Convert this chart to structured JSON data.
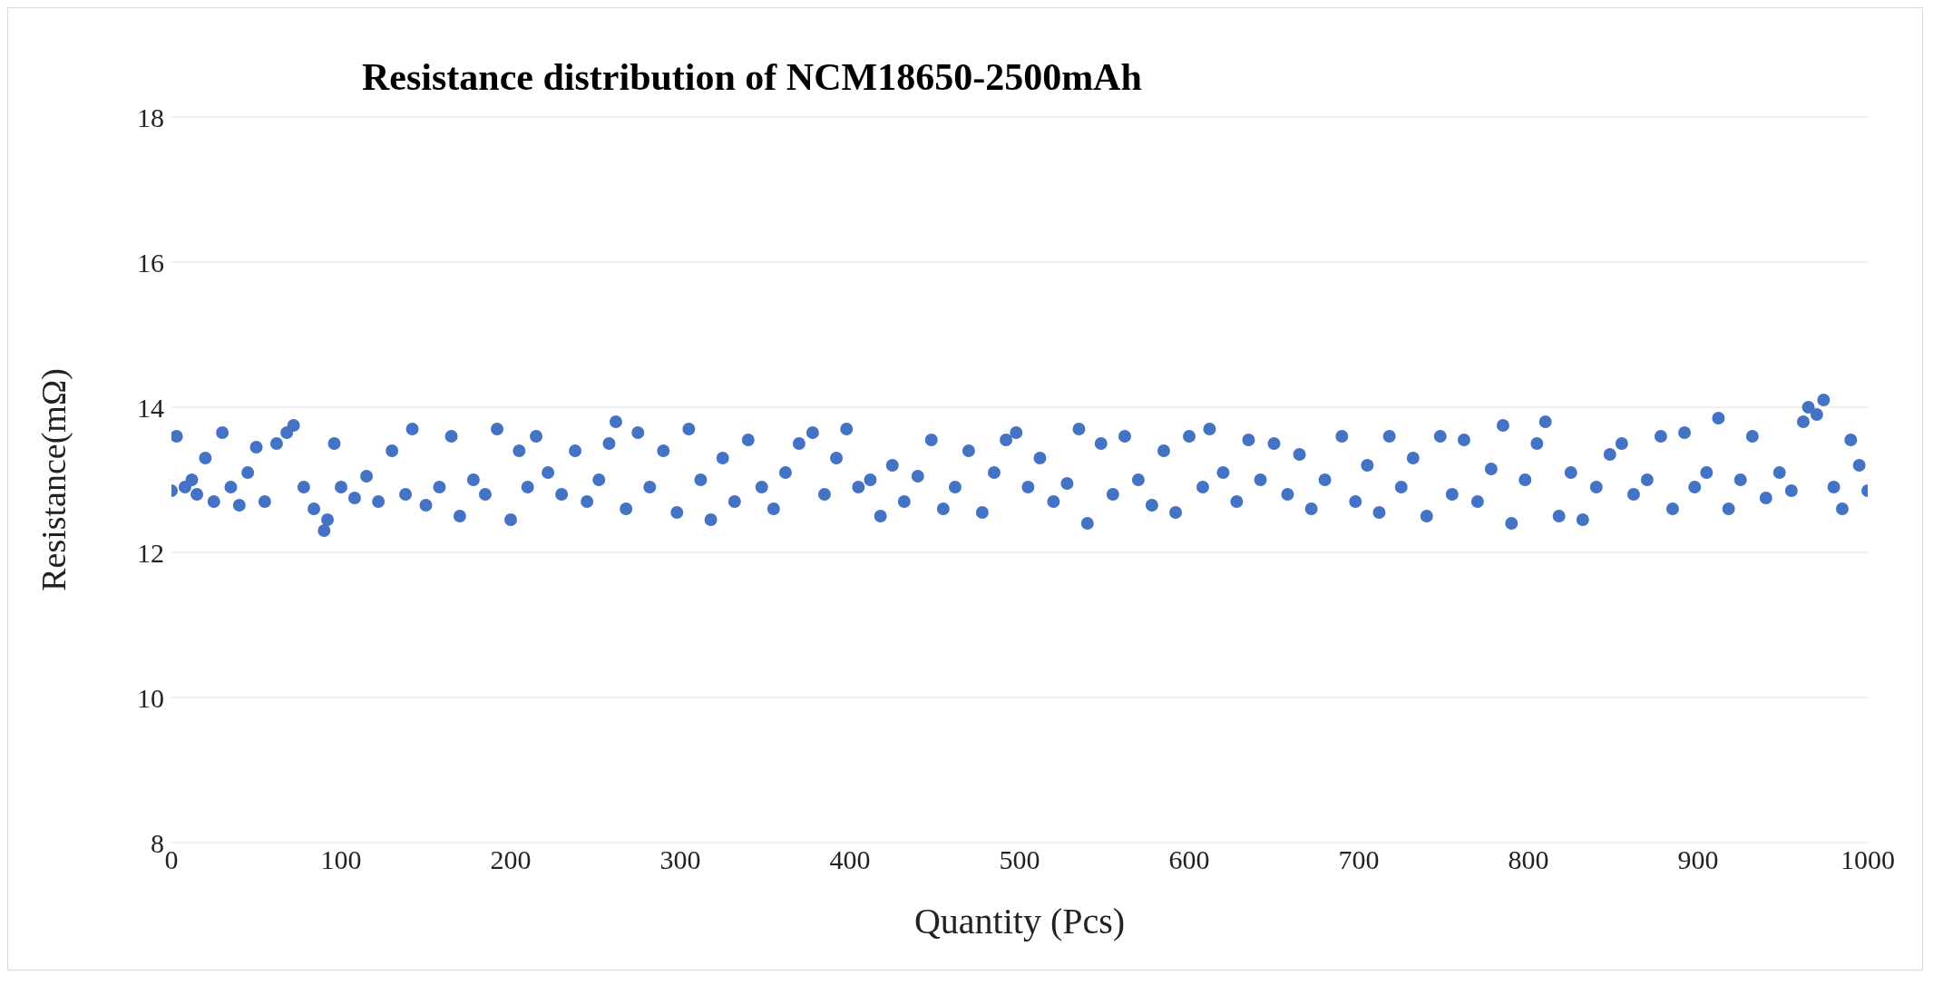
{
  "chart_data": {
    "type": "scatter",
    "title": "Resistance distribution  of NCM18650-2500mAh",
    "xlabel": "Quantity  (Pcs)",
    "ylabel": "Resistance(mΩ)",
    "xlim": [
      0,
      1000
    ],
    "xticks": [
      0,
      100,
      200,
      300,
      400,
      500,
      600,
      700,
      800,
      900,
      1000
    ],
    "ylim": [
      8,
      18
    ],
    "yticks": [
      8,
      10,
      12,
      14,
      16,
      18
    ],
    "grid": "y",
    "marker": "circle",
    "series": [
      {
        "color": "#4472c4",
        "x": [
          0,
          3,
          8,
          12,
          15,
          20,
          25,
          30,
          35,
          40,
          45,
          50,
          55,
          62,
          68,
          72,
          78,
          84,
          90,
          92,
          96,
          100,
          108,
          115,
          122,
          130,
          138,
          142,
          150,
          158,
          165,
          170,
          178,
          185,
          192,
          200,
          205,
          210,
          215,
          222,
          230,
          238,
          245,
          252,
          258,
          262,
          268,
          275,
          282,
          290,
          298,
          305,
          312,
          318,
          325,
          332,
          340,
          348,
          355,
          362,
          370,
          378,
          385,
          392,
          398,
          405,
          412,
          418,
          425,
          432,
          440,
          448,
          455,
          462,
          470,
          478,
          485,
          492,
          498,
          505,
          512,
          520,
          528,
          535,
          540,
          548,
          555,
          562,
          570,
          578,
          585,
          592,
          600,
          608,
          612,
          620,
          628,
          635,
          642,
          650,
          658,
          665,
          672,
          680,
          690,
          698,
          705,
          712,
          718,
          725,
          732,
          740,
          748,
          755,
          762,
          770,
          778,
          785,
          790,
          798,
          805,
          810,
          818,
          825,
          832,
          840,
          848,
          855,
          862,
          870,
          878,
          885,
          892,
          898,
          905,
          912,
          918,
          925,
          932,
          940,
          948,
          955,
          962,
          965,
          970,
          974,
          980,
          985,
          990,
          995,
          1000
        ],
        "values": [
          12.85,
          13.6,
          12.9,
          13.0,
          12.8,
          13.3,
          12.7,
          13.65,
          12.9,
          12.65,
          13.1,
          13.45,
          12.7,
          13.5,
          13.65,
          13.75,
          12.9,
          12.6,
          12.3,
          12.45,
          13.5,
          12.9,
          12.75,
          13.05,
          12.7,
          13.4,
          12.8,
          13.7,
          12.65,
          12.9,
          13.6,
          12.5,
          13.0,
          12.8,
          13.7,
          12.45,
          13.4,
          12.9,
          13.6,
          13.1,
          12.8,
          13.4,
          12.7,
          13.0,
          13.5,
          13.8,
          12.6,
          13.65,
          12.9,
          13.4,
          12.55,
          13.7,
          13.0,
          12.45,
          13.3,
          12.7,
          13.55,
          12.9,
          12.6,
          13.1,
          13.5,
          13.65,
          12.8,
          13.3,
          13.7,
          12.9,
          13.0,
          12.5,
          13.2,
          12.7,
          13.05,
          13.55,
          12.6,
          12.9,
          13.4,
          12.55,
          13.1,
          13.55,
          13.65,
          12.9,
          13.3,
          12.7,
          12.95,
          13.7,
          12.4,
          13.5,
          12.8,
          13.6,
          13.0,
          12.65,
          13.4,
          12.55,
          13.6,
          12.9,
          13.7,
          13.1,
          12.7,
          13.55,
          13.0,
          13.5,
          12.8,
          13.35,
          12.6,
          13.0,
          13.6,
          12.7,
          13.2,
          12.55,
          13.6,
          12.9,
          13.3,
          12.5,
          13.6,
          12.8,
          13.55,
          12.7,
          13.15,
          13.75,
          12.4,
          13.0,
          13.5,
          13.8,
          12.5,
          13.1,
          12.45,
          12.9,
          13.35,
          13.5,
          12.8,
          13.0,
          13.6,
          12.6,
          13.65,
          12.9,
          13.1,
          13.85,
          12.6,
          13.0,
          13.6,
          12.75,
          13.1,
          12.85,
          13.8,
          14.0,
          13.9,
          14.1,
          12.9,
          12.6,
          13.55,
          13.2,
          12.85
        ]
      }
    ]
  }
}
